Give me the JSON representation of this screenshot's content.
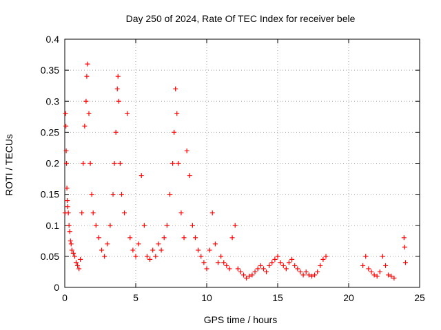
{
  "chart_data": {
    "type": "scatter",
    "title": "Day 250 of 2024, Rate Of TEC Index for receiver bele",
    "xlabel": "GPS time / hours",
    "ylabel": "ROTI / TECUs",
    "xlim": [
      0,
      25
    ],
    "ylim": [
      0,
      0.4
    ],
    "x_ticks": [
      0,
      5,
      10,
      15,
      20,
      25
    ],
    "y_ticks": [
      0,
      0.05,
      0.1,
      0.15,
      0.2,
      0.25,
      0.3,
      0.35,
      0.4
    ],
    "x_tick_labels": [
      "0",
      "5",
      "10",
      "15",
      "20",
      "25"
    ],
    "y_tick_labels": [
      "0",
      "0.05",
      "0.1",
      "0.15",
      "0.2",
      "0.25",
      "0.3",
      "0.35",
      "0.4"
    ],
    "grid": true,
    "marker": "+",
    "color": "#ff0000",
    "series": [
      {
        "values": [
          [
            0.02,
            0.12
          ],
          [
            0.05,
            0.28
          ],
          [
            0.08,
            0.26
          ],
          [
            0.1,
            0.22
          ],
          [
            0.12,
            0.2
          ],
          [
            0.15,
            0.16
          ],
          [
            0.18,
            0.14
          ],
          [
            0.2,
            0.13
          ],
          [
            0.25,
            0.12
          ],
          [
            0.3,
            0.1
          ],
          [
            0.35,
            0.09
          ],
          [
            0.4,
            0.075
          ],
          [
            0.45,
            0.07
          ],
          [
            0.5,
            0.06
          ],
          [
            0.6,
            0.055
          ],
          [
            0.7,
            0.05
          ],
          [
            0.8,
            0.04
          ],
          [
            0.9,
            0.035
          ],
          [
            1.0,
            0.03
          ],
          [
            1.1,
            0.045
          ],
          [
            1.2,
            0.12
          ],
          [
            1.3,
            0.2
          ],
          [
            1.4,
            0.26
          ],
          [
            1.5,
            0.3
          ],
          [
            1.55,
            0.34
          ],
          [
            1.6,
            0.36
          ],
          [
            1.7,
            0.28
          ],
          [
            1.8,
            0.2
          ],
          [
            1.9,
            0.15
          ],
          [
            2.0,
            0.12
          ],
          [
            2.2,
            0.1
          ],
          [
            2.4,
            0.08
          ],
          [
            2.6,
            0.06
          ],
          [
            2.8,
            0.05
          ],
          [
            3.0,
            0.07
          ],
          [
            3.2,
            0.1
          ],
          [
            3.4,
            0.15
          ],
          [
            3.5,
            0.2
          ],
          [
            3.6,
            0.25
          ],
          [
            3.7,
            0.32
          ],
          [
            3.75,
            0.34
          ],
          [
            3.8,
            0.3
          ],
          [
            3.9,
            0.2
          ],
          [
            4.0,
            0.15
          ],
          [
            4.2,
            0.12
          ],
          [
            4.4,
            0.28
          ],
          [
            4.6,
            0.08
          ],
          [
            4.8,
            0.06
          ],
          [
            5.0,
            0.05
          ],
          [
            5.2,
            0.07
          ],
          [
            5.4,
            0.18
          ],
          [
            5.6,
            0.1
          ],
          [
            5.8,
            0.05
          ],
          [
            6.0,
            0.045
          ],
          [
            6.2,
            0.06
          ],
          [
            6.4,
            0.05
          ],
          [
            6.6,
            0.07
          ],
          [
            6.8,
            0.06
          ],
          [
            7.0,
            0.08
          ],
          [
            7.2,
            0.1
          ],
          [
            7.4,
            0.15
          ],
          [
            7.6,
            0.2
          ],
          [
            7.7,
            0.25
          ],
          [
            7.8,
            0.32
          ],
          [
            7.9,
            0.28
          ],
          [
            8.0,
            0.2
          ],
          [
            8.2,
            0.12
          ],
          [
            8.4,
            0.08
          ],
          [
            8.6,
            0.22
          ],
          [
            8.8,
            0.18
          ],
          [
            9.0,
            0.1
          ],
          [
            9.2,
            0.08
          ],
          [
            9.4,
            0.06
          ],
          [
            9.6,
            0.05
          ],
          [
            9.8,
            0.04
          ],
          [
            10.0,
            0.03
          ],
          [
            10.2,
            0.06
          ],
          [
            10.4,
            0.12
          ],
          [
            10.6,
            0.07
          ],
          [
            10.8,
            0.04
          ],
          [
            11.0,
            0.05
          ],
          [
            11.2,
            0.04
          ],
          [
            11.4,
            0.035
          ],
          [
            11.6,
            0.03
          ],
          [
            11.8,
            0.08
          ],
          [
            12.0,
            0.1
          ],
          [
            12.2,
            0.03
          ],
          [
            12.4,
            0.025
          ],
          [
            12.6,
            0.02
          ],
          [
            12.8,
            0.015
          ],
          [
            13.0,
            0.018
          ],
          [
            13.2,
            0.02
          ],
          [
            13.4,
            0.025
          ],
          [
            13.6,
            0.03
          ],
          [
            13.8,
            0.035
          ],
          [
            14.0,
            0.03
          ],
          [
            14.2,
            0.025
          ],
          [
            14.4,
            0.035
          ],
          [
            14.6,
            0.04
          ],
          [
            14.8,
            0.045
          ],
          [
            15.0,
            0.05
          ],
          [
            15.2,
            0.04
          ],
          [
            15.4,
            0.035
          ],
          [
            15.6,
            0.03
          ],
          [
            15.8,
            0.04
          ],
          [
            16.0,
            0.045
          ],
          [
            16.2,
            0.035
          ],
          [
            16.4,
            0.03
          ],
          [
            16.6,
            0.025
          ],
          [
            16.8,
            0.02
          ],
          [
            17.0,
            0.025
          ],
          [
            17.2,
            0.02
          ],
          [
            17.4,
            0.018
          ],
          [
            17.6,
            0.02
          ],
          [
            17.8,
            0.025
          ],
          [
            18.0,
            0.035
          ],
          [
            18.2,
            0.045
          ],
          [
            18.4,
            0.05
          ],
          [
            21.0,
            0.035
          ],
          [
            21.2,
            0.05
          ],
          [
            21.4,
            0.03
          ],
          [
            21.6,
            0.025
          ],
          [
            21.8,
            0.02
          ],
          [
            22.0,
            0.018
          ],
          [
            22.2,
            0.025
          ],
          [
            22.4,
            0.05
          ],
          [
            22.6,
            0.035
          ],
          [
            22.8,
            0.02
          ],
          [
            23.0,
            0.018
          ],
          [
            23.2,
            0.015
          ],
          [
            23.9,
            0.08
          ],
          [
            23.95,
            0.065
          ],
          [
            24.0,
            0.04
          ]
        ]
      }
    ]
  }
}
